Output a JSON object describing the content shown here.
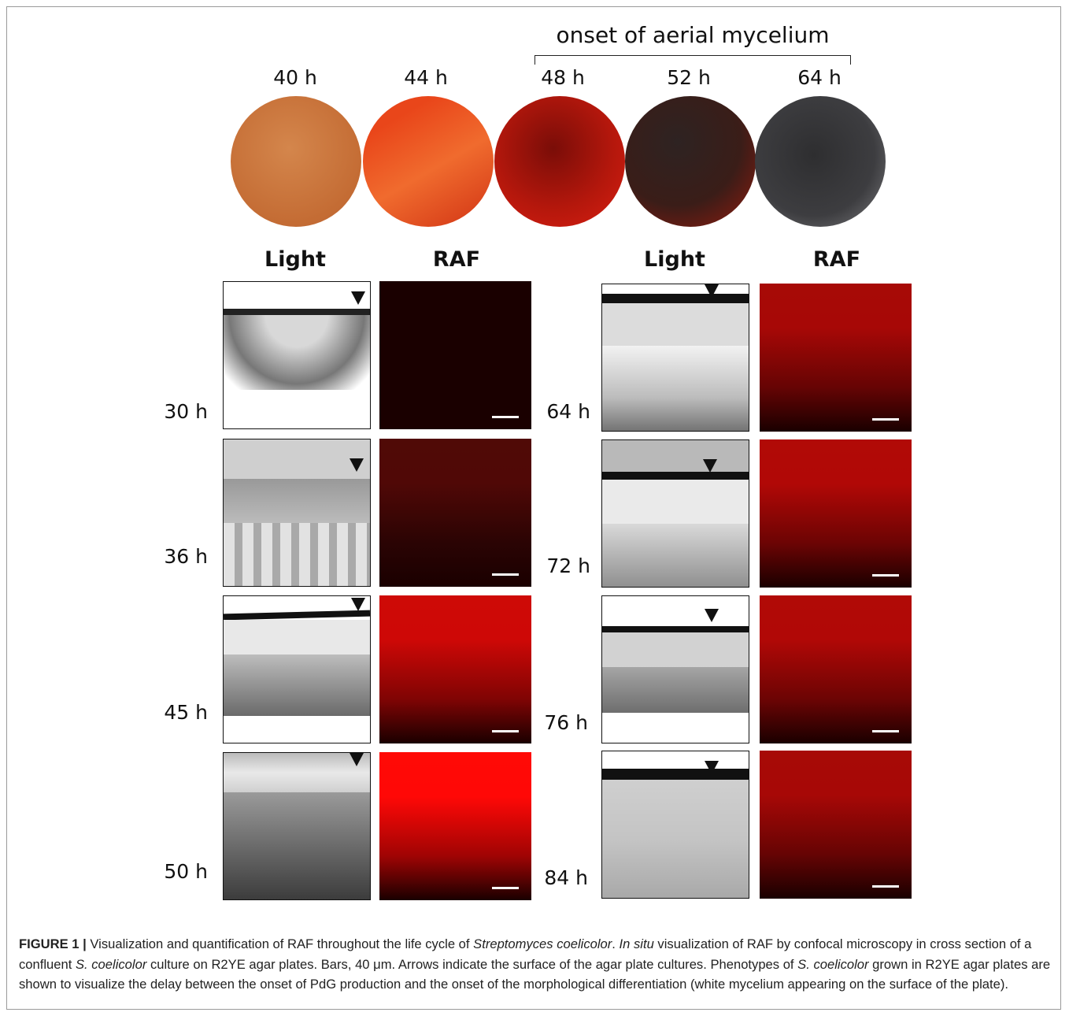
{
  "onset_label": "onset of aerial mycelium",
  "plates": [
    {
      "label": "40 h",
      "color": "#c9773f"
    },
    {
      "label": "44 h",
      "color": "#e0521c"
    },
    {
      "label": "48 h",
      "color": "#b3170c"
    },
    {
      "label": "52 h",
      "color": "#5a1a12"
    },
    {
      "label": "64 h",
      "color": "#3e3e40"
    }
  ],
  "column_headers": {
    "left_light": "Light",
    "left_raf": "RAF",
    "right_light": "Light",
    "right_raf": "RAF"
  },
  "left_rows": [
    {
      "time": "30 h",
      "raf_level": 0.0
    },
    {
      "time": "36 h",
      "raf_level": 0.1
    },
    {
      "time": "45 h",
      "raf_level": 0.75
    },
    {
      "time": "50 h",
      "raf_level": 1.0
    }
  ],
  "right_rows": [
    {
      "time": "64 h",
      "raf_level": 0.55
    },
    {
      "time": "72 h",
      "raf_level": 0.6
    },
    {
      "time": "76 h",
      "raf_level": 0.6
    },
    {
      "time": "84 h",
      "raf_level": 0.55
    }
  ],
  "caption": {
    "figure_label": "FIGURE 1 |",
    "t1": " Visualization and quantification of RAF throughout the life cycle of ",
    "i1": "Streptomyces coelicolor",
    "t2": ". ",
    "i2": "In situ",
    "t3": " visualization of RAF by confocal microscopy in cross section of a confluent ",
    "i3": "S. coelicolor",
    "t4": " culture on R2YE agar plates. Bars, 40 μm. Arrows indicate the surface of the agar plate cultures. Phenotypes of ",
    "i4": "S. coelicolor",
    "t5": " grown in R2YE agar plates are shown to visualize the delay between the onset of PdG production and the onset of the morphological differentiation (white mycelium appearing on the surface of the plate)."
  }
}
